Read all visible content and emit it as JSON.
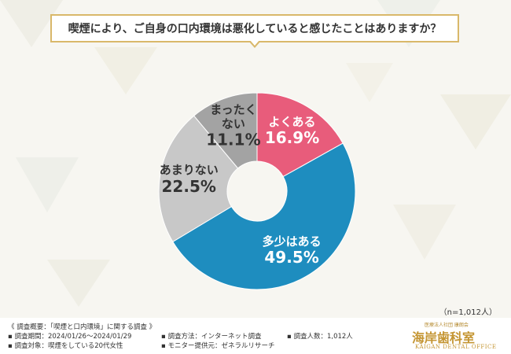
{
  "chart_data": {
    "type": "donut",
    "title": "喫煙により、ご自身の口内環境は悪化していると感じたことはありますか？",
    "categories": [
      "よくある",
      "多少はある",
      "あまりない",
      "まったく\nない"
    ],
    "values": [
      16.9,
      49.5,
      22.5,
      11.1
    ],
    "value_labels": [
      "16.9%",
      "49.5%",
      "22.5%",
      "11.1%"
    ],
    "colors": [
      "#e85c7b",
      "#1e8dbf",
      "#c8c8c8",
      "#a3a3a3"
    ],
    "note": "（n=1,012人）"
  },
  "footer": {
    "heading": "《 調査概要：「喫煙と口内環境」に関する調査 》",
    "items": [
      "調査期間：2024/01/26〜2024/01/29",
      "調査対象：喫煙をしている20代女性",
      "調査方法：インターネット調査",
      "モニター提供元：ゼネラルリサーチ",
      "調査人数：1,012人"
    ]
  },
  "logo": {
    "org": "医療法人社団 康朗会",
    "name": "海岸歯科室",
    "english": "KAIGAN DENTAL OFFICE"
  }
}
